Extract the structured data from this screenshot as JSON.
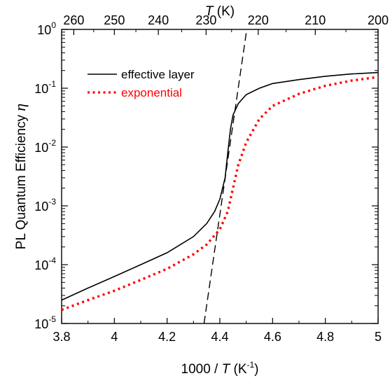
{
  "chart_data": {
    "type": "line",
    "xlabel": {
      "prefix": "1000 / ",
      "var": "T",
      "unit_open": "  (K",
      "unit_exp": "-1",
      "unit_close": ")"
    },
    "ylabel": {
      "text": "PL Quantum Efficiency  ",
      "symbol": "η"
    },
    "top_xlabel": {
      "var": "T",
      "unit": " (K)"
    },
    "xlim": [
      3.8,
      5.0
    ],
    "ylim": [
      1e-05,
      1
    ],
    "yscale": "log",
    "x_ticks": [
      "3.8",
      "4",
      "4.2",
      "4.4",
      "4.6",
      "4.8",
      "5"
    ],
    "x_tick_values": [
      3.8,
      4.0,
      4.2,
      4.4,
      4.6,
      4.8,
      5.0
    ],
    "y_ticks": [
      {
        "base": "10",
        "exp": "-5",
        "value": 1e-05
      },
      {
        "base": "10",
        "exp": "-4",
        "value": 0.0001
      },
      {
        "base": "10",
        "exp": "-3",
        "value": 0.001
      },
      {
        "base": "10",
        "exp": "-2",
        "value": 0.01
      },
      {
        "base": "10",
        "exp": "-1",
        "value": 0.1
      },
      {
        "base": "10",
        "exp": "0",
        "value": 1
      }
    ],
    "top_ticks": [
      "260",
      "250",
      "240",
      "230",
      "220",
      "210",
      "200"
    ],
    "top_tick_values_K": [
      260,
      250,
      240,
      230,
      220,
      210,
      200
    ],
    "grid": false,
    "legend_position": "top-left",
    "series": [
      {
        "name": "effective layer",
        "color": "#000000",
        "style": "solid",
        "x": [
          3.8,
          3.9,
          4.0,
          4.1,
          4.2,
          4.3,
          4.35,
          4.38,
          4.4,
          4.42,
          4.43,
          4.44,
          4.45,
          4.47,
          4.5,
          4.55,
          4.6,
          4.7,
          4.8,
          4.9,
          5.0
        ],
        "y": [
          2.5e-05,
          4e-05,
          6.3e-05,
          0.0001,
          0.00016,
          0.0003,
          0.0005,
          0.0008,
          0.0013,
          0.003,
          0.008,
          0.02,
          0.035,
          0.055,
          0.078,
          0.1,
          0.12,
          0.14,
          0.16,
          0.175,
          0.185
        ]
      },
      {
        "name": "exponential",
        "color": "#ff0000",
        "style": "dotted",
        "x": [
          3.8,
          3.9,
          4.0,
          4.1,
          4.2,
          4.3,
          4.35,
          4.4,
          4.43,
          4.45,
          4.47,
          4.5,
          4.55,
          4.6,
          4.7,
          4.8,
          4.9,
          5.0
        ],
        "y": [
          1.7e-05,
          2.5e-05,
          3.6e-05,
          5.5e-05,
          8.5e-05,
          0.00015,
          0.00022,
          0.0004,
          0.0008,
          0.002,
          0.005,
          0.012,
          0.03,
          0.05,
          0.08,
          0.11,
          0.135,
          0.155
        ]
      },
      {
        "color": "#000000",
        "style": "dashed",
        "x": [
          4.34,
          4.502
        ],
        "y": [
          1e-05,
          1
        ]
      }
    ]
  }
}
